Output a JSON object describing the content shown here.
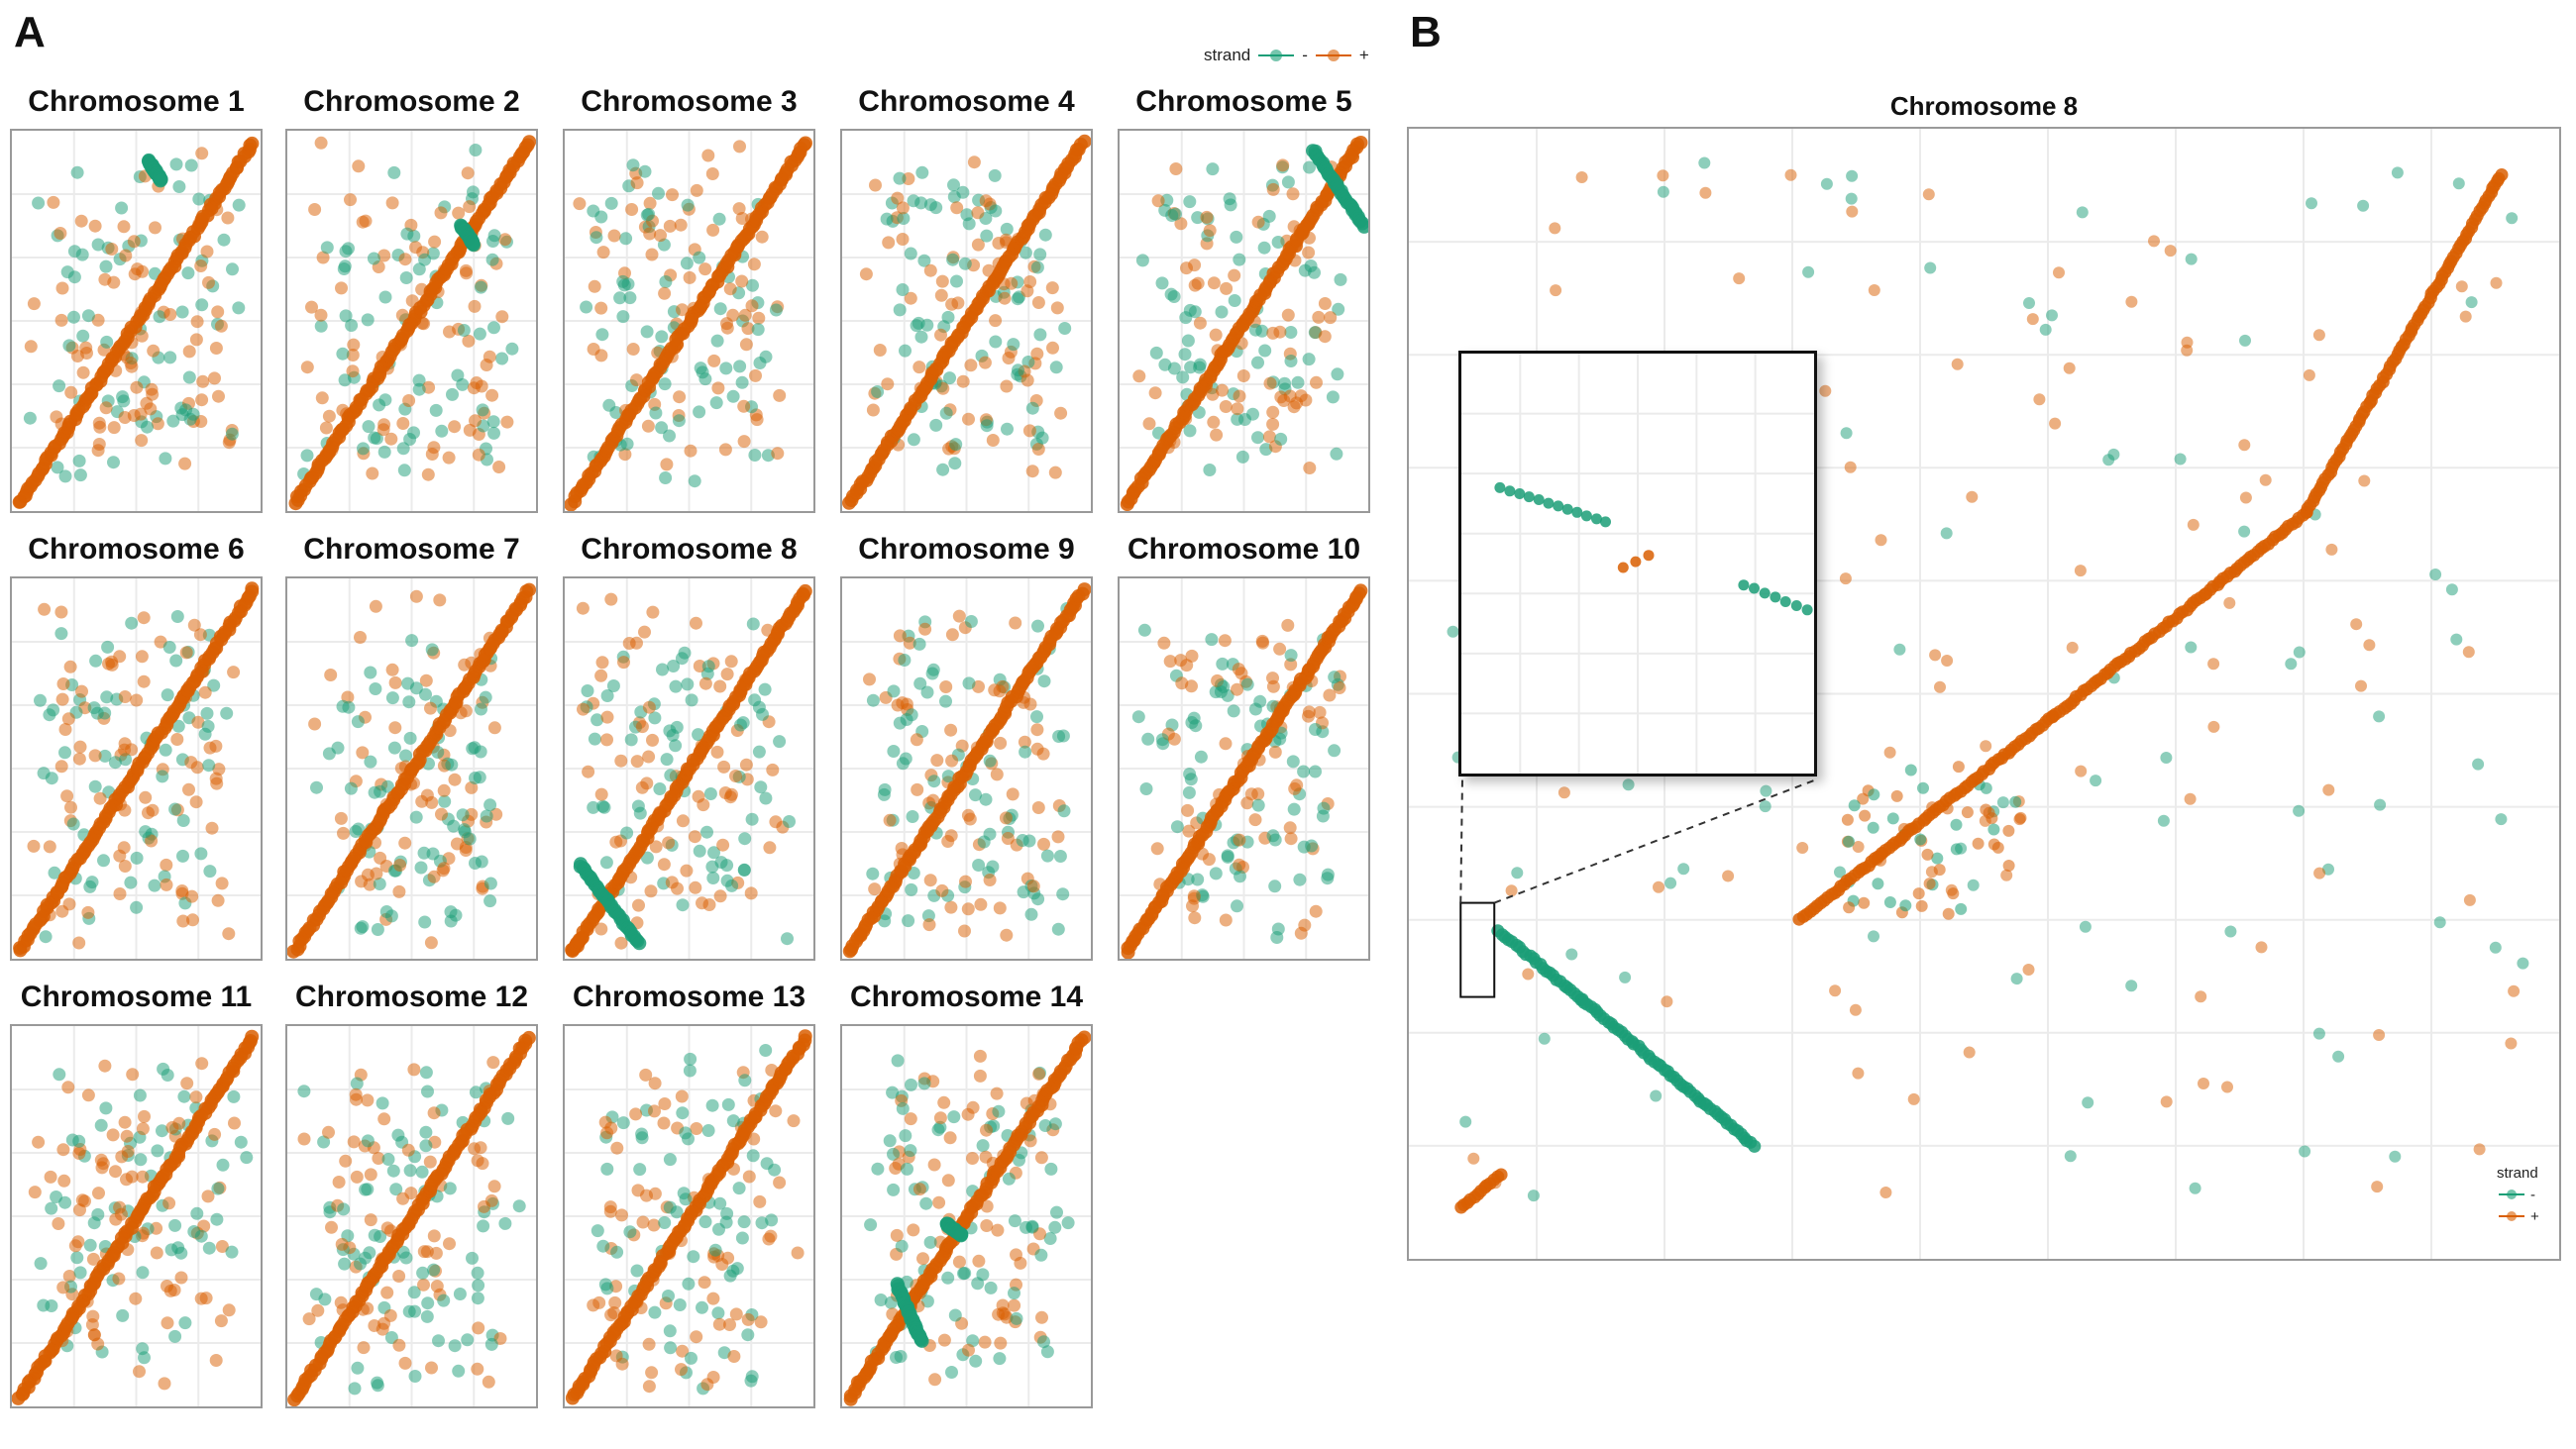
{
  "panel_labels": {
    "a": "A",
    "b": "B"
  },
  "legend": {
    "title": "strand",
    "items": [
      {
        "label": "-",
        "color": "#1b9e77"
      },
      {
        "label": "+",
        "color": "#d95f02"
      }
    ]
  },
  "colors": {
    "minus": "#1b9e77",
    "plus": "#d95f02",
    "grid": "#ebebeb"
  },
  "chart_data": [
    {
      "type": "scatter",
      "panel": "A",
      "facets": [
        {
          "title": "Chromosome 1"
        },
        {
          "title": "Chromosome 2"
        },
        {
          "title": "Chromosome 3"
        },
        {
          "title": "Chromosome 4"
        },
        {
          "title": "Chromosome 5"
        },
        {
          "title": "Chromosome 6"
        },
        {
          "title": "Chromosome 7"
        },
        {
          "title": "Chromosome 8"
        },
        {
          "title": "Chromosome 9"
        },
        {
          "title": "Chromosome 10"
        },
        {
          "title": "Chromosome 11"
        },
        {
          "title": "Chromosome 12"
        },
        {
          "title": "Chromosome 13"
        },
        {
          "title": "Chromosome 14"
        }
      ],
      "series": [
        {
          "name": "-",
          "color": "#1b9e77"
        },
        {
          "name": "+",
          "color": "#d95f02"
        }
      ],
      "axes": {
        "xlim": [
          0,
          1
        ],
        "ylim": [
          0,
          1
        ],
        "tick_labels": "none",
        "grid": true
      },
      "legend_position": "top-right"
    },
    {
      "type": "scatter",
      "panel": "B",
      "title": "Chromosome 8",
      "axes": {
        "xlim": [
          0,
          1
        ],
        "ylim": [
          0,
          1
        ],
        "tick_labels": "none",
        "grid": true
      },
      "legend_position": "bottom-right",
      "series": [
        {
          "name": "+",
          "color": "#d95f02",
          "segments": [
            {
              "from": [
                0.045,
                0.045
              ],
              "to": [
                0.08,
                0.075
              ]
            },
            {
              "from": [
                0.34,
                0.3
              ],
              "to": [
                0.56,
                0.48
              ]
            },
            {
              "from": [
                0.56,
                0.48
              ],
              "to": [
                0.78,
                0.66
              ]
            },
            {
              "from": [
                0.78,
                0.66
              ],
              "to": [
                0.95,
                0.96
              ]
            }
          ]
        },
        {
          "name": "-",
          "color": "#1b9e77",
          "segments": [
            {
              "from": [
                0.078,
                0.29
              ],
              "to": [
                0.15,
                0.23
              ]
            },
            {
              "from": [
                0.15,
                0.23
              ],
              "to": [
                0.3,
                0.1
              ]
            }
          ]
        }
      ],
      "inset": {
        "zoom_of": "region near start of inverted segment"
      }
    }
  ]
}
